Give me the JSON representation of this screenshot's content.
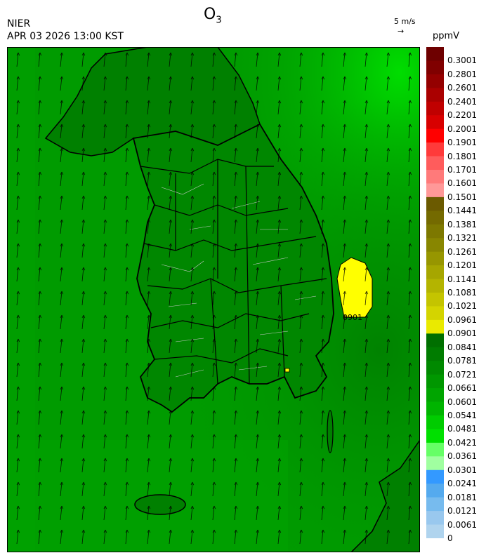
{
  "header": {
    "organization": "NIER",
    "timestamp": "APR 03 2026 13:00 KST",
    "species": "O",
    "species_sub": "3"
  },
  "wind_scale": {
    "label": "5 m/s",
    "arrow": "→"
  },
  "legend": {
    "unit": "ppmV",
    "labels": [
      "0.3001",
      "0.2801",
      "0.2601",
      "0.2401",
      "0.2201",
      "0.2001",
      "0.1901",
      "0.1801",
      "0.1701",
      "0.1601",
      "0.1501",
      "0.1441",
      "0.1381",
      "0.1321",
      "0.1261",
      "0.1201",
      "0.1141",
      "0.1081",
      "0.1021",
      "0.0961",
      "0.0901",
      "0.0841",
      "0.0781",
      "0.0721",
      "0.0661",
      "0.0601",
      "0.0541",
      "0.0481",
      "0.0421",
      "0.0361",
      "0.0301",
      "0.0241",
      "0.0181",
      "0.0121",
      "0.0061",
      "0"
    ],
    "colors": [
      "#6e0000",
      "#800000",
      "#940000",
      "#aa0000",
      "#c00000",
      "#d80000",
      "#ff0000",
      "#ff3a3a",
      "#ff5c5c",
      "#ff7a7a",
      "#ff9898",
      "#6b5a00",
      "#746a00",
      "#7d7800",
      "#888600",
      "#979600",
      "#a6a600",
      "#b4b400",
      "#c4c400",
      "#d4d400",
      "#eaea00",
      "#006f00",
      "#007c00",
      "#008900",
      "#009700",
      "#00a500",
      "#00b400",
      "#00cc00",
      "#00e000",
      "#66ff66",
      "#a0ffa0",
      "#3399ff",
      "#55aaee",
      "#77bbee",
      "#99c8ee",
      "#b0d4ee"
    ]
  },
  "map": {
    "contour_label": "0901",
    "ocean_color": "#009b00",
    "high_color": "#ffff00"
  }
}
